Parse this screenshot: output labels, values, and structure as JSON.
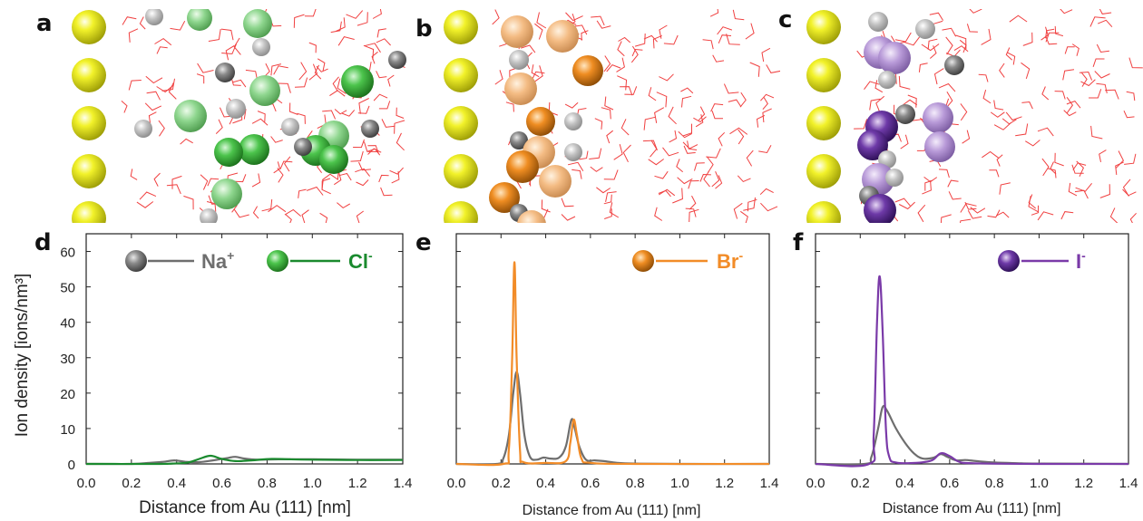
{
  "panel_labels": [
    "a",
    "b",
    "c",
    "d",
    "e",
    "f"
  ],
  "snapshot_colors": {
    "gold": "#e4e41c",
    "na": "#6a6a6a",
    "cl": "#3fae3f",
    "br": "#e8871f",
    "i": "#6a3aa0",
    "water": "#f04040"
  },
  "chart_data": [
    {
      "type": "line",
      "panel": "d",
      "xlabel": "Distance from Au (111) [nm]",
      "ylabel": "Ion density [ions/nm³]",
      "xlim": [
        0,
        1.4
      ],
      "ylim": [
        0,
        65
      ],
      "x_ticks": [
        "0.0",
        "0.2",
        "0.4",
        "0.6",
        "0.8",
        "1.0",
        "1.2",
        "1.4"
      ],
      "y_ticks": [
        "0",
        "10",
        "20",
        "30",
        "40",
        "50",
        "60"
      ],
      "grid": false,
      "legend_position": "top-right",
      "series": [
        {
          "name": "Na",
          "sup": "+",
          "color": "#6e6e6e",
          "icon": "na-ion-sphere-icon",
          "points": [
            [
              0.0,
              0
            ],
            [
              0.2,
              0
            ],
            [
              0.28,
              0.3
            ],
            [
              0.34,
              0.6
            ],
            [
              0.39,
              1.0
            ],
            [
              0.44,
              0.6
            ],
            [
              0.5,
              0.5
            ],
            [
              0.56,
              1.0
            ],
            [
              0.62,
              1.6
            ],
            [
              0.66,
              2.0
            ],
            [
              0.7,
              1.5
            ],
            [
              0.76,
              1.2
            ],
            [
              0.85,
              1.3
            ],
            [
              1.0,
              1.3
            ],
            [
              1.2,
              1.2
            ],
            [
              1.4,
              1.2
            ]
          ]
        },
        {
          "name": "Cl",
          "sup": "-",
          "color": "#1a8a2e",
          "icon": "cl-ion-sphere-icon",
          "points": [
            [
              0.0,
              0
            ],
            [
              0.3,
              0
            ],
            [
              0.38,
              0.1
            ],
            [
              0.45,
              0.4
            ],
            [
              0.5,
              1.4
            ],
            [
              0.55,
              2.3
            ],
            [
              0.6,
              1.4
            ],
            [
              0.66,
              0.8
            ],
            [
              0.73,
              1.0
            ],
            [
              0.82,
              1.4
            ],
            [
              0.9,
              1.3
            ],
            [
              1.0,
              1.2
            ],
            [
              1.2,
              1.1
            ],
            [
              1.4,
              1.1
            ]
          ]
        }
      ]
    },
    {
      "type": "line",
      "panel": "e",
      "xlabel": "Distance from Au (111) [nm]",
      "ylabel": "",
      "xlim": [
        0,
        1.4
      ],
      "ylim": [
        0,
        65
      ],
      "x_ticks": [
        "0.0",
        "0.2",
        "0.4",
        "0.6",
        "0.8",
        "1.0",
        "1.2",
        "1.4"
      ],
      "y_ticks": [],
      "grid": false,
      "legend_position": "top-right",
      "series": [
        {
          "name": "Na",
          "sup": "+",
          "color": "#6e6e6e",
          "icon": null,
          "in_legend": false,
          "points": [
            [
              0.0,
              0
            ],
            [
              0.18,
              0
            ],
            [
              0.21,
              1.5
            ],
            [
              0.235,
              8
            ],
            [
              0.255,
              20
            ],
            [
              0.27,
              26
            ],
            [
              0.285,
              20
            ],
            [
              0.305,
              8
            ],
            [
              0.33,
              2
            ],
            [
              0.36,
              1.2
            ],
            [
              0.39,
              1.8
            ],
            [
              0.42,
              1.5
            ],
            [
              0.46,
              1.8
            ],
            [
              0.49,
              5
            ],
            [
              0.515,
              12.5
            ],
            [
              0.53,
              10
            ],
            [
              0.55,
              5
            ],
            [
              0.58,
              1.2
            ],
            [
              0.62,
              1.0
            ],
            [
              0.66,
              0.8
            ],
            [
              0.72,
              0.3
            ],
            [
              0.8,
              0.1
            ],
            [
              1.0,
              0
            ],
            [
              1.4,
              0
            ]
          ]
        },
        {
          "name": "Br",
          "sup": "-",
          "color": "#f28c28",
          "icon": "br-ion-sphere-icon",
          "in_legend": true,
          "points": [
            [
              0.0,
              0
            ],
            [
              0.21,
              0
            ],
            [
              0.235,
              4
            ],
            [
              0.25,
              30
            ],
            [
              0.26,
              57
            ],
            [
              0.27,
              30
            ],
            [
              0.285,
              4
            ],
            [
              0.3,
              0.5
            ],
            [
              0.4,
              0.3
            ],
            [
              0.49,
              0.8
            ],
            [
              0.51,
              6
            ],
            [
              0.525,
              12.5
            ],
            [
              0.54,
              8
            ],
            [
              0.56,
              1.5
            ],
            [
              0.6,
              0.3
            ],
            [
              0.8,
              0
            ],
            [
              1.4,
              0
            ]
          ]
        }
      ]
    },
    {
      "type": "line",
      "panel": "f",
      "xlabel": "Distance from Au (111) [nm]",
      "ylabel": "",
      "xlim": [
        0,
        1.4
      ],
      "ylim": [
        0,
        65
      ],
      "x_ticks": [
        "0.0",
        "0.2",
        "0.4",
        "0.6",
        "0.8",
        "1.0",
        "1.2",
        "1.4"
      ],
      "y_ticks": [],
      "grid": false,
      "legend_position": "top-right",
      "series": [
        {
          "name": "Na",
          "sup": "+",
          "color": "#6e6e6e",
          "icon": null,
          "in_legend": false,
          "points": [
            [
              0.0,
              0
            ],
            [
              0.22,
              0
            ],
            [
              0.25,
              2
            ],
            [
              0.28,
              10
            ],
            [
              0.3,
              16
            ],
            [
              0.32,
              15
            ],
            [
              0.36,
              10
            ],
            [
              0.4,
              6
            ],
            [
              0.44,
              3
            ],
            [
              0.48,
              1.5
            ],
            [
              0.53,
              1.8
            ],
            [
              0.56,
              2.8
            ],
            [
              0.59,
              2.0
            ],
            [
              0.63,
              1.0
            ],
            [
              0.67,
              1.1
            ],
            [
              0.72,
              0.8
            ],
            [
              0.8,
              0.4
            ],
            [
              0.9,
              0.2
            ],
            [
              1.0,
              0.1
            ],
            [
              1.4,
              0
            ]
          ]
        },
        {
          "name": "I",
          "sup": "-",
          "color": "#7a3aa8",
          "icon": "i-ion-sphere-icon",
          "in_legend": true,
          "points": [
            [
              0.0,
              0
            ],
            [
              0.24,
              0
            ],
            [
              0.26,
              8
            ],
            [
              0.275,
              40
            ],
            [
              0.287,
              53
            ],
            [
              0.3,
              38
            ],
            [
              0.315,
              10
            ],
            [
              0.33,
              2
            ],
            [
              0.36,
              0.4
            ],
            [
              0.45,
              0.3
            ],
            [
              0.52,
              1.0
            ],
            [
              0.56,
              3.0
            ],
            [
              0.6,
              2.2
            ],
            [
              0.64,
              0.7
            ],
            [
              0.7,
              0.2
            ],
            [
              1.0,
              0
            ],
            [
              1.4,
              0
            ]
          ]
        }
      ]
    }
  ]
}
